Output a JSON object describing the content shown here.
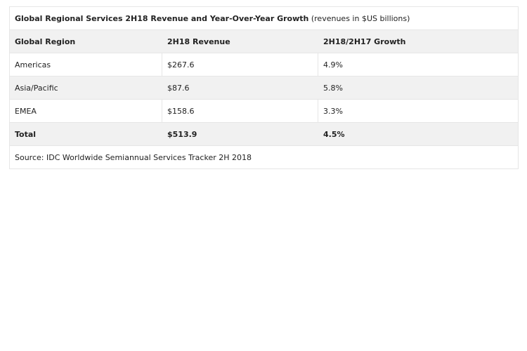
{
  "table": {
    "title": "Global Regional Services 2H18 Revenue and Year-Over-Year Growth",
    "subtitle": "(revenues in $US billions)",
    "header": [
      "Global Region",
      "2H18 Revenue",
      "2H18/2H17 Growth"
    ],
    "rows": [
      [
        "Americas",
        "$267.6",
        "4.9%"
      ],
      [
        "Asia/Pacific",
        "$87.6",
        "5.8%"
      ],
      [
        "EMEA",
        "$158.6",
        "3.3%"
      ]
    ],
    "total": [
      "Total",
      "$513.9",
      "4.5%"
    ],
    "source": "Source: IDC Worldwide Semiannual Services Tracker 2H 2018"
  }
}
